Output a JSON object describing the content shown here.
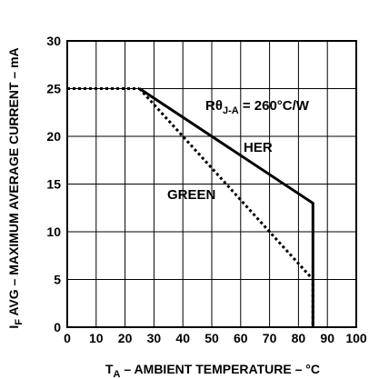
{
  "chart_data": {
    "type": "line",
    "xlim": [
      0,
      100
    ],
    "ylim": [
      0,
      30
    ],
    "x_ticks": [
      "0",
      "10",
      "20",
      "30",
      "40",
      "50",
      "60",
      "70",
      "80",
      "90",
      "100"
    ],
    "y_ticks": [
      "0",
      "5",
      "10",
      "15",
      "20",
      "25",
      "30"
    ],
    "grid": true,
    "xlabel": {
      "main": "T",
      "sub": "A",
      "rest": " – AMBIENT TEMPERATURE – °C"
    },
    "ylabel": {
      "main": "I",
      "sub": "F",
      "rest": " AVG – MAXIMUM AVERAGE CURRENT – mA"
    },
    "series": [
      {
        "name": "HER",
        "style": "solid",
        "color": "#000000",
        "x": [
          25,
          85,
          85
        ],
        "y": [
          25,
          13,
          0
        ]
      },
      {
        "name": "GREEN",
        "style": "dotted",
        "color": "#000000",
        "x": [
          25,
          85,
          85
        ],
        "y": [
          25,
          5,
          0
        ]
      },
      {
        "name": "",
        "style": "dotted",
        "color": "#000000",
        "x": [
          0,
          25
        ],
        "y": [
          25,
          25
        ]
      }
    ],
    "annotations": {
      "thermal": {
        "main": "R",
        "theta": "θ",
        "sub": "J-A",
        "rest": " = 260°C/W"
      },
      "her_label": "HER",
      "green_label": "GREEN"
    }
  }
}
